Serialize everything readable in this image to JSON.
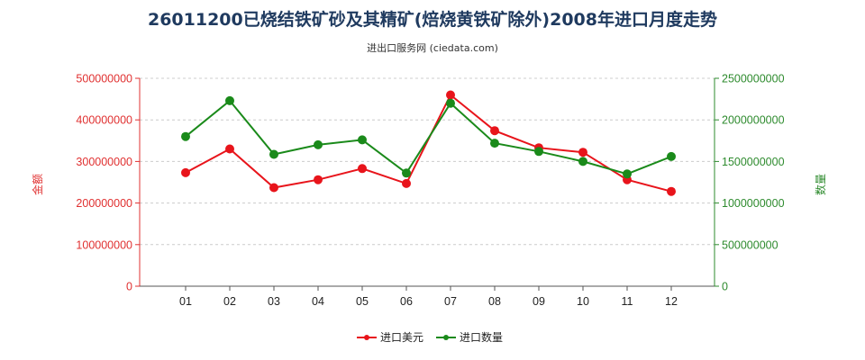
{
  "chart_data": {
    "type": "line",
    "title": "26011200已烧结铁矿砂及其精矿(焙烧黄铁矿除外)2008年进口月度走势",
    "subtitle": "进出口服务网 (ciedata.com)",
    "categories": [
      "01",
      "02",
      "03",
      "04",
      "05",
      "06",
      "07",
      "08",
      "09",
      "10",
      "11",
      "12"
    ],
    "left_axis": {
      "label": "金额",
      "ylim": [
        0,
        500000000
      ],
      "ticks": [
        "0",
        "100000000",
        "200000000",
        "300000000",
        "400000000",
        "500000000"
      ],
      "color": "#e03030"
    },
    "right_axis": {
      "label": "数量",
      "ylim": [
        0,
        2500000000
      ],
      "ticks": [
        "0",
        "500000000",
        "1000000000",
        "1500000000",
        "2000000000",
        "2500000000"
      ],
      "color": "#2e8b2e"
    },
    "series": [
      {
        "name": "进口美元",
        "axis": "left",
        "color": "#e8141b",
        "values": [
          273000000,
          330000000,
          237000000,
          256000000,
          283000000,
          247000000,
          460000000,
          374000000,
          333000000,
          322000000,
          256000000,
          228000000
        ]
      },
      {
        "name": "进口数量",
        "axis": "right",
        "color": "#1a8a1a",
        "values": [
          1800000000,
          2230000000,
          1585000000,
          1700000000,
          1760000000,
          1360000000,
          2200000000,
          1720000000,
          1620000000,
          1500000000,
          1350000000,
          1560000000
        ]
      }
    ],
    "grid": true,
    "legend_position": "bottom"
  }
}
